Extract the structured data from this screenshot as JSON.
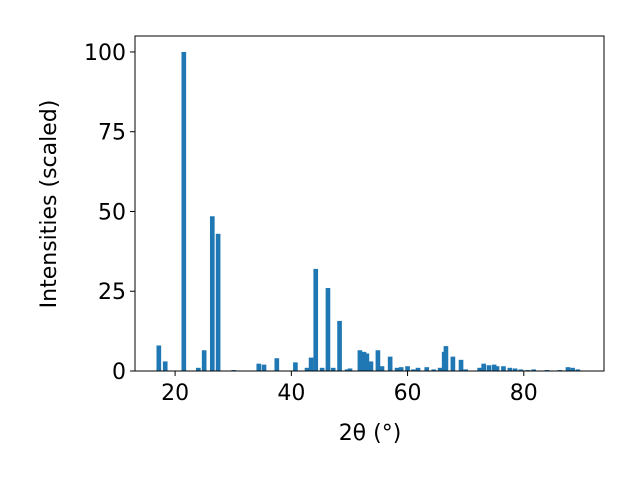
{
  "chart_data": {
    "type": "bar",
    "xlabel": "2θ (°)",
    "ylabel": "Intensities (scaled)",
    "color": "#1f77b4",
    "x": [
      17.2,
      18.3,
      21.5,
      24.0,
      25.0,
      26.4,
      27.4,
      30.1,
      34.4,
      35.3,
      37.5,
      40.7,
      42.7,
      43.4,
      44.2,
      45.3,
      46.3,
      47.2,
      48.3,
      49.6,
      50.1,
      51.8,
      52.5,
      53.0,
      53.7,
      54.9,
      55.6,
      57.0,
      58.2,
      58.9,
      60.0,
      61.0,
      61.8,
      63.3,
      64.5,
      65.6,
      66.3,
      66.6,
      67.8,
      69.2,
      70.0,
      72.4,
      73.1,
      74.0,
      74.9,
      75.4,
      76.5,
      77.6,
      78.5,
      79.5,
      80.7,
      81.7,
      84.0,
      86.2,
      87.6,
      88.4,
      89.3
    ],
    "values": [
      8,
      3,
      100,
      1,
      6.5,
      48.5,
      43,
      0.3,
      2.3,
      2,
      4,
      2.7,
      1,
      4.2,
      32,
      1,
      26,
      1,
      15.7,
      0.5,
      0.8,
      6.5,
      6,
      5.5,
      3,
      6.5,
      1.5,
      4.5,
      1,
      1.2,
      1.5,
      0.5,
      1,
      1.2,
      0.5,
      1,
      6,
      7.8,
      4.5,
      3.5,
      0.5,
      1,
      2.3,
      1.8,
      2,
      1.5,
      1.5,
      1,
      0.8,
      0.5,
      0.3,
      0.5,
      0.3,
      0.3,
      1.2,
      1,
      0.5
    ],
    "xlim": [
      13.1,
      93.8
    ],
    "xticks": [
      20,
      40,
      60,
      80
    ],
    "ylim": [
      0,
      105
    ],
    "yticks": [
      0,
      25,
      50,
      75,
      100
    ]
  }
}
